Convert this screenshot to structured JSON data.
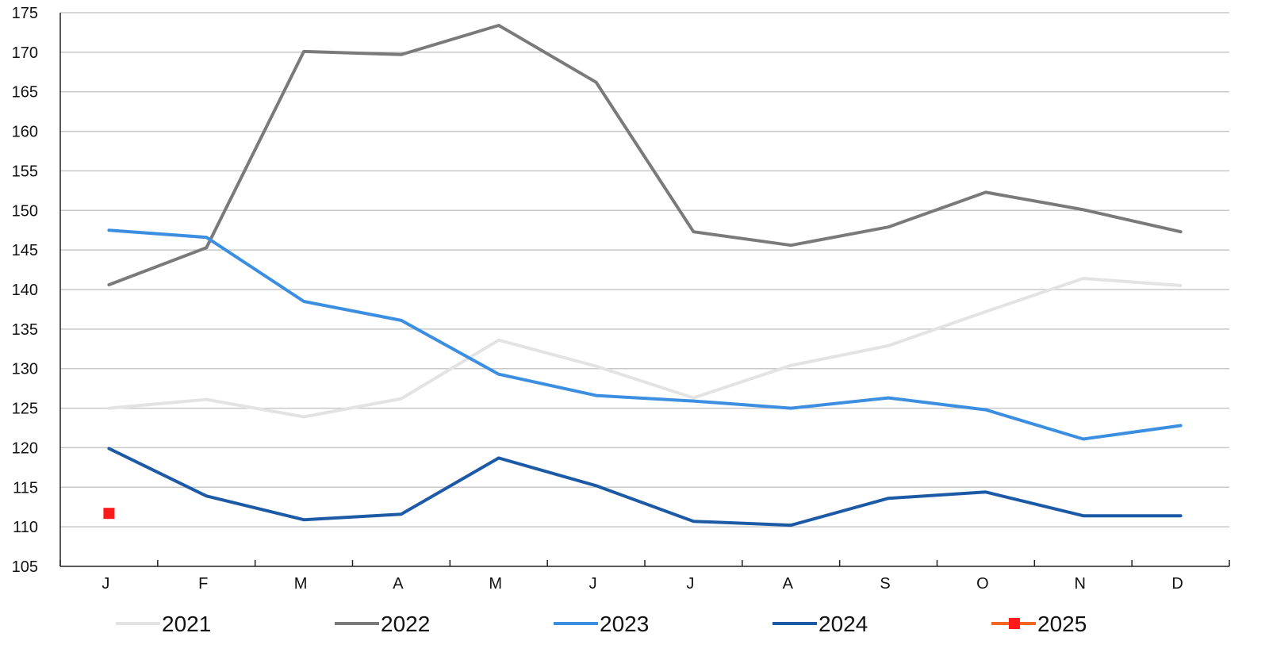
{
  "chart_data": {
    "type": "line",
    "categories": [
      "J",
      "F",
      "M",
      "A",
      "M",
      "J",
      "J",
      "A",
      "S",
      "O",
      "N",
      "D"
    ],
    "ylim": [
      105,
      175
    ],
    "yticks": [
      105,
      110,
      115,
      120,
      125,
      130,
      135,
      140,
      145,
      150,
      155,
      160,
      165,
      170,
      175
    ],
    "grid": true,
    "legend_position": "bottom",
    "series": [
      {
        "name": "2021",
        "color": "#e3e3e3",
        "marker": "none",
        "values": [
          125.0,
          126.1,
          123.9,
          126.2,
          133.6,
          130.3,
          126.3,
          130.4,
          132.9,
          137.2,
          141.4,
          140.5
        ]
      },
      {
        "name": "2022",
        "color": "#7a7a7a",
        "marker": "none",
        "values": [
          140.6,
          145.3,
          170.1,
          169.7,
          173.4,
          166.2,
          147.3,
          145.6,
          147.9,
          152.3,
          150.1,
          147.3
        ]
      },
      {
        "name": "2023",
        "color": "#3c8fe0",
        "marker": "none",
        "values": [
          147.5,
          146.6,
          138.5,
          136.1,
          129.3,
          126.6,
          125.9,
          125.0,
          126.3,
          124.8,
          121.1,
          122.8
        ]
      },
      {
        "name": "2024",
        "color": "#1c5aa6",
        "marker": "none",
        "values": [
          119.9,
          113.9,
          110.9,
          111.6,
          118.7,
          115.2,
          110.7,
          110.2,
          113.6,
          114.4,
          111.4,
          111.4
        ]
      },
      {
        "name": "2025",
        "color": "#f26522",
        "marker": "square",
        "marker_color": "#ff1a1a",
        "values": [
          111.7,
          null,
          null,
          null,
          null,
          null,
          null,
          null,
          null,
          null,
          null,
          null
        ]
      }
    ]
  }
}
